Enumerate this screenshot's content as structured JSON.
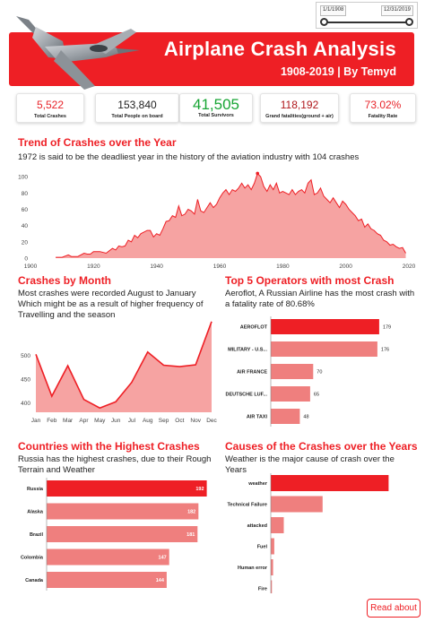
{
  "date_slicer": {
    "start": "1/1/1908",
    "end": "12/31/2019"
  },
  "header": {
    "title": "Airplane Crash Analysis",
    "subtitle": "1908-2019 | By Temyd"
  },
  "kpis": [
    {
      "value": "5,522",
      "label": "Total Crashes",
      "color": "#e8242a"
    },
    {
      "value": "153,840",
      "label": "Total People on board",
      "color": "#222222"
    },
    {
      "value": "41,505",
      "label": "Total Survivors",
      "color": "#17a534"
    },
    {
      "value": "118,192",
      "label": "Grand fatalities(ground + air)",
      "color": "#b0181c"
    },
    {
      "value": "73.02%",
      "label": "Fatality Rate",
      "color": "#e8242a"
    }
  ],
  "colors": {
    "accent": "#ee1f25",
    "area_fill": "#f6a3a2",
    "bar_highlight": "#ee1f25",
    "bar_light": "#ef7f7e"
  },
  "trend": {
    "title": "Trend of Crashes over the Year",
    "description": "1972 is said to be the deadliest year in the history of the aviation industry with 104 crashes"
  },
  "by_month": {
    "title": "Crashes by Month",
    "description": "Most crashes were recorded August to January Which might be as a result of higher frequency of Travelling and the season"
  },
  "operators": {
    "title": "Top 5 Operators with most Crash",
    "description": "Aeroflot, A Russian Airline has the most crash with a fatality rate of 80.68%"
  },
  "countries": {
    "title": "Countries with the Highest Crashes",
    "description": "Russia has the highest crashes, due to their Rough Terrain and Weather"
  },
  "causes": {
    "title": "Causes of the Crashes over the Years",
    "description": "Weather is the major cause of crash over the Years"
  },
  "read_about_label": "Read about",
  "chart_data": [
    {
      "type": "area",
      "x": [
        1908,
        1910,
        1912,
        1913,
        1915,
        1917,
        1918,
        1919,
        1920,
        1922,
        1924,
        1926,
        1927,
        1928,
        1929,
        1930,
        1931,
        1932,
        1933,
        1934,
        1935,
        1936,
        1937,
        1938,
        1939,
        1940,
        1941,
        1942,
        1943,
        1944,
        1945,
        1946,
        1947,
        1948,
        1949,
        1950,
        1951,
        1952,
        1953,
        1954,
        1955,
        1956,
        1957,
        1958,
        1959,
        1960,
        1961,
        1962,
        1963,
        1964,
        1965,
        1966,
        1967,
        1968,
        1969,
        1970,
        1971,
        1972,
        1973,
        1974,
        1975,
        1976,
        1977,
        1978,
        1979,
        1980,
        1981,
        1982,
        1983,
        1984,
        1985,
        1986,
        1987,
        1988,
        1989,
        1990,
        1991,
        1992,
        1993,
        1994,
        1995,
        1996,
        1997,
        1998,
        1999,
        2000,
        2001,
        2002,
        2003,
        2004,
        2005,
        2006,
        2007,
        2008,
        2009,
        2010,
        2011,
        2012,
        2013,
        2014,
        2015,
        2016,
        2017,
        2018,
        2019
      ],
      "y": [
        1,
        1,
        4,
        2,
        2,
        6,
        5,
        5,
        8,
        8,
        6,
        12,
        10,
        15,
        14,
        15,
        22,
        20,
        28,
        25,
        30,
        32,
        34,
        34,
        26,
        30,
        28,
        36,
        45,
        46,
        52,
        50,
        64,
        52,
        54,
        60,
        58,
        54,
        72,
        58,
        56,
        62,
        68,
        62,
        66,
        74,
        80,
        84,
        78,
        84,
        82,
        86,
        92,
        86,
        90,
        84,
        92,
        104,
        100,
        88,
        82,
        90,
        84,
        92,
        80,
        82,
        80,
        78,
        84,
        78,
        82,
        84,
        80,
        92,
        96,
        78,
        80,
        86,
        76,
        72,
        68,
        74,
        68,
        62,
        70,
        66,
        60,
        56,
        52,
        46,
        48,
        38,
        42,
        36,
        34,
        30,
        28,
        22,
        20,
        16,
        17,
        14,
        12,
        13,
        6
      ],
      "xlim": [
        1900,
        2020
      ],
      "ylim": [
        0,
        110
      ],
      "x_ticks": [
        1900,
        1920,
        1940,
        1960,
        1980,
        2000,
        2020
      ],
      "y_ticks": [
        0,
        20,
        40,
        60,
        80,
        100
      ],
      "grid": false
    },
    {
      "type": "area",
      "categories": [
        "Jan",
        "Feb",
        "Mar",
        "Apr",
        "May",
        "Jun",
        "Jul",
        "Aug",
        "Sep",
        "Oct",
        "Nov",
        "Dec"
      ],
      "values": [
        502,
        414,
        478,
        407,
        389,
        402,
        443,
        507,
        479,
        476,
        480,
        571
      ],
      "ylim": [
        380,
        580
      ],
      "y_ticks": [
        400,
        450,
        500
      ],
      "grid": false
    },
    {
      "type": "bar",
      "orientation": "horizontal",
      "categories": [
        "AEROFLOT",
        "MILITARY - U.S...",
        "AIR FRANCE",
        "DEUTSCHE LUF...",
        "AIR TAXI"
      ],
      "values": [
        179,
        176,
        70,
        65,
        48
      ],
      "xlim": [
        0,
        185
      ]
    },
    {
      "type": "bar",
      "orientation": "horizontal",
      "categories": [
        "Russia",
        "Alaska",
        "Brazil",
        "Colombia",
        "Canada"
      ],
      "values": [
        192,
        182,
        181,
        147,
        144
      ],
      "xlim": [
        0,
        200
      ]
    },
    {
      "type": "bar",
      "orientation": "horizontal",
      "categories": [
        "weather",
        "Technical Failure",
        "attacked",
        "Fuel",
        "Human error",
        "Fire"
      ],
      "values": [
        100,
        44,
        11,
        3,
        2,
        1
      ],
      "xlim": [
        0,
        102
      ]
    }
  ]
}
